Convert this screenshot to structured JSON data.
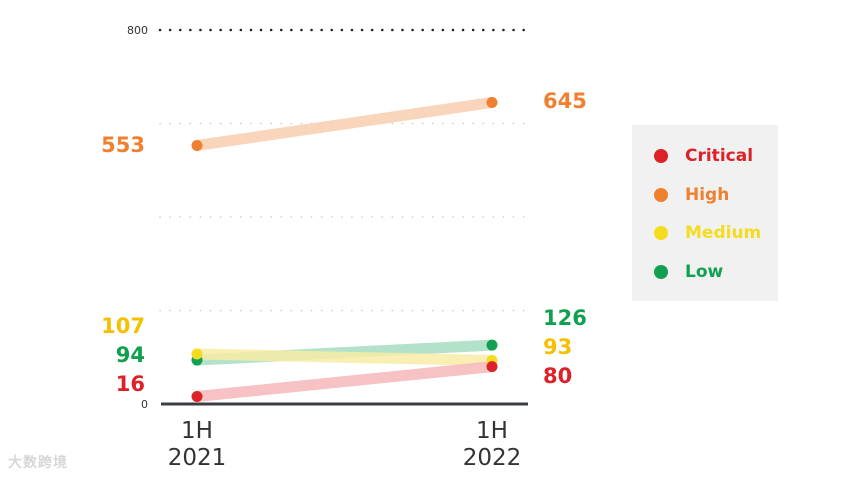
{
  "chart_data": {
    "type": "line",
    "categories": [
      "1H 2021",
      "1H 2022"
    ],
    "x_tick_labels": [
      [
        "1H",
        "2021"
      ],
      [
        "1H",
        "2022"
      ]
    ],
    "ylim": [
      0,
      800
    ],
    "y_tick_labels": [
      "0",
      "800"
    ],
    "grid": true,
    "legend_position": "right",
    "series": [
      {
        "name": "High",
        "values": [
          553,
          645
        ],
        "color": "#f08030",
        "line_color": "#f9d0b0",
        "label_color": "#f08030"
      },
      {
        "name": "Low",
        "values": [
          94,
          126
        ],
        "color": "#10a050",
        "line_color": "#a8dcc0",
        "label_color": "#10a050"
      },
      {
        "name": "Medium",
        "values": [
          107,
          93
        ],
        "color": "#f5dc20",
        "line_color": "#f8eda8",
        "label_color": "#f5c000"
      },
      {
        "name": "Critical",
        "values": [
          16,
          80
        ],
        "color": "#dc2228",
        "line_color": "#f5b8ba",
        "label_color": "#dc2228"
      }
    ]
  },
  "legend": {
    "items": [
      {
        "label": "Critical",
        "color": "#dc2228"
      },
      {
        "label": "High",
        "color": "#f08030"
      },
      {
        "label": "Medium",
        "color": "#f5dc20"
      },
      {
        "label": "Low",
        "color": "#10a050"
      }
    ]
  },
  "watermark": "大数跨境"
}
